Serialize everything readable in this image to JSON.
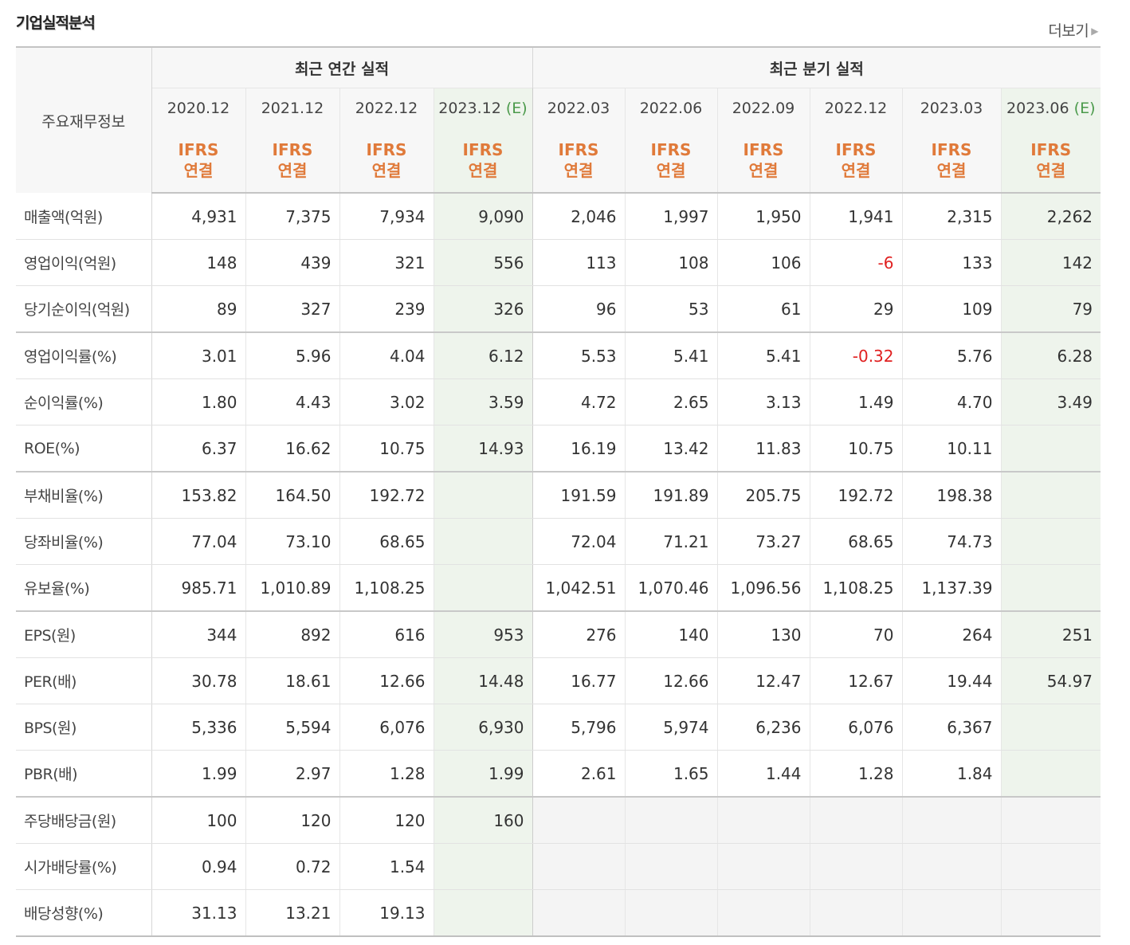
{
  "title": "기업실적분석",
  "more_label": "더보기",
  "table": {
    "row_header": "주요재무정보",
    "group_annual": "최근 연간 실적",
    "group_quarter": "최근 분기 실적",
    "estimate_mark": "(E)",
    "periods": [
      {
        "date": "2020.12",
        "est": false
      },
      {
        "date": "2021.12",
        "est": false
      },
      {
        "date": "2022.12",
        "est": false
      },
      {
        "date": "2023.12",
        "est": true
      },
      {
        "date": "2022.03",
        "est": false
      },
      {
        "date": "2022.06",
        "est": false
      },
      {
        "date": "2022.09",
        "est": false
      },
      {
        "date": "2022.12",
        "est": false
      },
      {
        "date": "2023.03",
        "est": false
      },
      {
        "date": "2023.06",
        "est": true
      }
    ],
    "basis_line1": "IFRS",
    "basis_line2": "연결",
    "rows": [
      {
        "label": "매출액(억원)",
        "values": [
          "4,931",
          "7,375",
          "7,934",
          "9,090",
          "2,046",
          "1,997",
          "1,950",
          "1,941",
          "2,315",
          "2,262"
        ]
      },
      {
        "label": "영업이익(억원)",
        "values": [
          "148",
          "439",
          "321",
          "556",
          "113",
          "108",
          "106",
          "-6",
          "133",
          "142"
        ]
      },
      {
        "label": "당기순이익(억원)",
        "values": [
          "89",
          "327",
          "239",
          "326",
          "96",
          "53",
          "61",
          "29",
          "109",
          "79"
        ]
      },
      {
        "label": "영업이익률(%)",
        "values": [
          "3.01",
          "5.96",
          "4.04",
          "6.12",
          "5.53",
          "5.41",
          "5.41",
          "-0.32",
          "5.76",
          "6.28"
        ]
      },
      {
        "label": "순이익률(%)",
        "values": [
          "1.80",
          "4.43",
          "3.02",
          "3.59",
          "4.72",
          "2.65",
          "3.13",
          "1.49",
          "4.70",
          "3.49"
        ]
      },
      {
        "label": "ROE(%)",
        "values": [
          "6.37",
          "16.62",
          "10.75",
          "14.93",
          "16.19",
          "13.42",
          "11.83",
          "10.75",
          "10.11",
          ""
        ]
      },
      {
        "label": "부채비율(%)",
        "values": [
          "153.82",
          "164.50",
          "192.72",
          "",
          "191.59",
          "191.89",
          "205.75",
          "192.72",
          "198.38",
          ""
        ]
      },
      {
        "label": "당좌비율(%)",
        "values": [
          "77.04",
          "73.10",
          "68.65",
          "",
          "72.04",
          "71.21",
          "73.27",
          "68.65",
          "74.73",
          ""
        ]
      },
      {
        "label": "유보율(%)",
        "values": [
          "985.71",
          "1,010.89",
          "1,108.25",
          "",
          "1,042.51",
          "1,070.46",
          "1,096.56",
          "1,108.25",
          "1,137.39",
          ""
        ]
      },
      {
        "label": "EPS(원)",
        "values": [
          "344",
          "892",
          "616",
          "953",
          "276",
          "140",
          "130",
          "70",
          "264",
          "251"
        ]
      },
      {
        "label": "PER(배)",
        "values": [
          "30.78",
          "18.61",
          "12.66",
          "14.48",
          "16.77",
          "12.66",
          "12.47",
          "12.67",
          "19.44",
          "54.97"
        ]
      },
      {
        "label": "BPS(원)",
        "values": [
          "5,336",
          "5,594",
          "6,076",
          "6,930",
          "5,796",
          "5,974",
          "6,236",
          "6,076",
          "6,367",
          ""
        ]
      },
      {
        "label": "PBR(배)",
        "values": [
          "1.99",
          "2.97",
          "1.28",
          "1.99",
          "2.61",
          "1.65",
          "1.44",
          "1.28",
          "1.84",
          ""
        ]
      },
      {
        "label": "주당배당금(원)",
        "values": [
          "100",
          "120",
          "120",
          "160",
          "",
          "",
          "",
          "",
          "",
          ""
        ]
      },
      {
        "label": "시가배당률(%)",
        "values": [
          "0.94",
          "0.72",
          "1.54",
          "",
          "",
          "",
          "",
          "",
          "",
          ""
        ]
      },
      {
        "label": "배당성향(%)",
        "values": [
          "31.13",
          "13.21",
          "19.13",
          "",
          "",
          "",
          "",
          "",
          "",
          ""
        ]
      }
    ],
    "colors": {
      "negative": "#e02020",
      "ifrs": "#e07a3a",
      "estimate_bg": "#eef4ec",
      "estimate_mark": "#4b9a4b"
    }
  }
}
